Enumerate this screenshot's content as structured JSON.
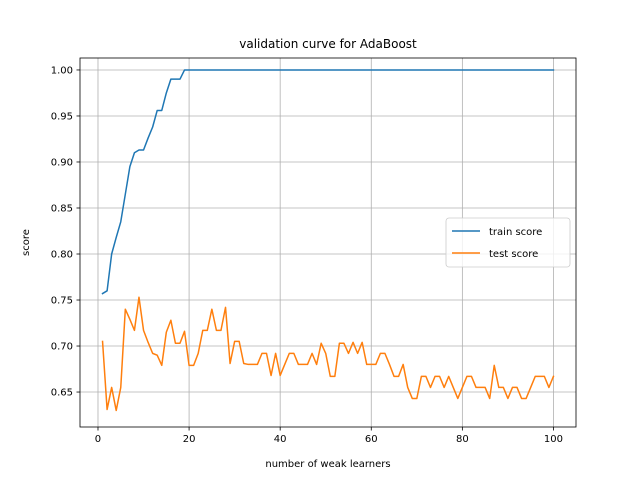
{
  "chart_data": {
    "type": "line",
    "title": "validation curve for AdaBoost",
    "xlabel": "number of weak learners",
    "ylabel": "score",
    "xlim": [
      -3.95,
      104.95
    ],
    "ylim": [
      0.612,
      1.013
    ],
    "xticks": [
      0,
      20,
      40,
      60,
      80,
      100
    ],
    "yticks": [
      0.65,
      0.7,
      0.75,
      0.8,
      0.85,
      0.9,
      0.95,
      1.0
    ],
    "xtick_labels": [
      "0",
      "20",
      "40",
      "60",
      "80",
      "100"
    ],
    "ytick_labels": [
      "0.65",
      "0.70",
      "0.75",
      "0.80",
      "0.85",
      "0.90",
      "0.95",
      "1.00"
    ],
    "grid": true,
    "legend_position": "center-right",
    "series": [
      {
        "name": "train score",
        "color": "#1f77b4",
        "x": [
          1,
          2,
          3,
          4,
          5,
          6,
          7,
          8,
          9,
          10,
          11,
          12,
          13,
          14,
          15,
          16,
          17,
          18,
          19,
          20,
          100
        ],
        "values": [
          0.757,
          0.76,
          0.8,
          0.818,
          0.835,
          0.865,
          0.895,
          0.91,
          0.913,
          0.913,
          0.926,
          0.938,
          0.956,
          0.956,
          0.975,
          0.99,
          0.99,
          0.99,
          1.0,
          1.0,
          1.0
        ]
      },
      {
        "name": "test score",
        "color": "#ff7f0e",
        "x": [
          1,
          2,
          3,
          4,
          5,
          6,
          7,
          8,
          9,
          10,
          11,
          12,
          13,
          14,
          15,
          16,
          17,
          18,
          19,
          20,
          21,
          22,
          23,
          24,
          25,
          26,
          27,
          28,
          29,
          30,
          31,
          32,
          33,
          34,
          35,
          36,
          37,
          38,
          39,
          40,
          41,
          42,
          43,
          44,
          45,
          46,
          47,
          48,
          49,
          50,
          51,
          52,
          53,
          54,
          55,
          56,
          57,
          58,
          59,
          60,
          61,
          62,
          63,
          64,
          65,
          66,
          67,
          68,
          69,
          70,
          71,
          72,
          73,
          74,
          75,
          76,
          77,
          78,
          79,
          80,
          81,
          82,
          83,
          84,
          85,
          86,
          87,
          88,
          89,
          90,
          91,
          92,
          93,
          94,
          95,
          96,
          97,
          98,
          99,
          100
        ],
        "values": [
          0.705,
          0.631,
          0.655,
          0.63,
          0.655,
          0.74,
          0.729,
          0.717,
          0.753,
          0.717,
          0.704,
          0.692,
          0.69,
          0.679,
          0.715,
          0.728,
          0.703,
          0.703,
          0.716,
          0.679,
          0.679,
          0.692,
          0.717,
          0.717,
          0.74,
          0.717,
          0.717,
          0.742,
          0.681,
          0.705,
          0.705,
          0.681,
          0.68,
          0.68,
          0.68,
          0.692,
          0.692,
          0.668,
          0.692,
          0.668,
          0.68,
          0.692,
          0.692,
          0.68,
          0.68,
          0.68,
          0.692,
          0.68,
          0.703,
          0.692,
          0.667,
          0.667,
          0.703,
          0.703,
          0.692,
          0.704,
          0.692,
          0.704,
          0.68,
          0.68,
          0.68,
          0.692,
          0.692,
          0.68,
          0.667,
          0.667,
          0.68,
          0.655,
          0.643,
          0.643,
          0.667,
          0.667,
          0.655,
          0.667,
          0.667,
          0.655,
          0.667,
          0.655,
          0.643,
          0.655,
          0.667,
          0.667,
          0.655,
          0.655,
          0.655,
          0.643,
          0.679,
          0.655,
          0.655,
          0.643,
          0.655,
          0.655,
          0.643,
          0.643,
          0.655,
          0.667,
          0.667,
          0.667,
          0.655,
          0.667
        ]
      }
    ]
  }
}
